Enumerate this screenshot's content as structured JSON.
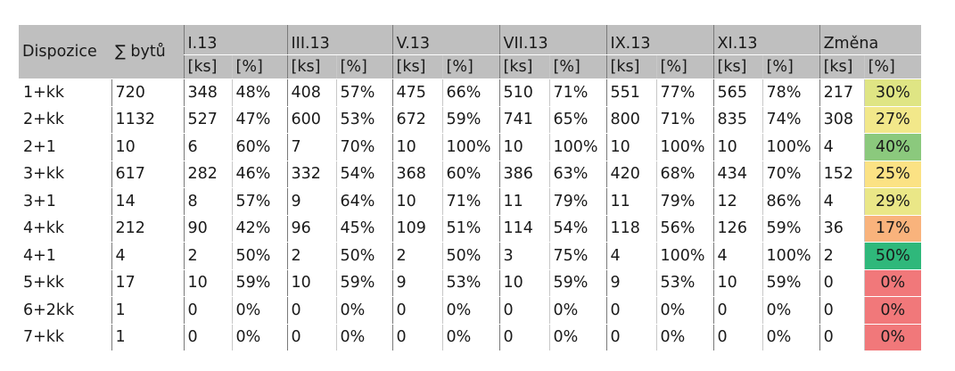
{
  "headers": {
    "dispozice": "Dispozice",
    "byty": "∑ bytů",
    "groups": [
      "I.13",
      "III.13",
      "V.13",
      "VII.13",
      "IX.13",
      "XI.13",
      "Změna"
    ],
    "unit_ks": "[ks]",
    "unit_pct": "[%]"
  },
  "rows": [
    {
      "d": "1+kk",
      "b": "720",
      "c": [
        "348",
        "48%",
        "408",
        "57%",
        "475",
        "66%",
        "510",
        "71%",
        "551",
        "77%",
        "565",
        "78%",
        "217",
        "30%"
      ],
      "color": "#dfe584"
    },
    {
      "d": "2+kk",
      "b": "1132",
      "c": [
        "527",
        "47%",
        "600",
        "53%",
        "672",
        "59%",
        "741",
        "65%",
        "800",
        "71%",
        "835",
        "74%",
        "308",
        "27%"
      ],
      "color": "#f2e88a"
    },
    {
      "d": "2+1",
      "b": "10",
      "c": [
        "6",
        "60%",
        "7",
        "70%",
        "10",
        "100%",
        "10",
        "100%",
        "10",
        "100%",
        "10",
        "100%",
        "4",
        "40%"
      ],
      "color": "#8bc97d"
    },
    {
      "d": "3+kk",
      "b": "617",
      "c": [
        "282",
        "46%",
        "332",
        "54%",
        "368",
        "60%",
        "386",
        "63%",
        "420",
        "68%",
        "434",
        "70%",
        "152",
        "25%"
      ],
      "color": "#fbe284"
    },
    {
      "d": "3+1",
      "b": "14",
      "c": [
        "8",
        "57%",
        "9",
        "64%",
        "10",
        "71%",
        "11",
        "79%",
        "11",
        "79%",
        "12",
        "86%",
        "4",
        "29%"
      ],
      "color": "#eae787"
    },
    {
      "d": "4+kk",
      "b": "212",
      "c": [
        "90",
        "42%",
        "96",
        "45%",
        "109",
        "51%",
        "114",
        "54%",
        "118",
        "56%",
        "126",
        "59%",
        "36",
        "17%"
      ],
      "color": "#f9b37c"
    },
    {
      "d": "4+1",
      "b": "4",
      "c": [
        "2",
        "50%",
        "2",
        "50%",
        "2",
        "50%",
        "3",
        "75%",
        "4",
        "100%",
        "4",
        "100%",
        "2",
        "50%"
      ],
      "color": "#2fb87b"
    },
    {
      "d": "5+kk",
      "b": "17",
      "c": [
        "10",
        "59%",
        "10",
        "59%",
        "9",
        "53%",
        "10",
        "59%",
        "9",
        "53%",
        "10",
        "59%",
        "0",
        "0%"
      ],
      "color": "#f1787a"
    },
    {
      "d": "6+2kk",
      "b": "1",
      "c": [
        "0",
        "0%",
        "0",
        "0%",
        "0",
        "0%",
        "0",
        "0%",
        "0",
        "0%",
        "0",
        "0%",
        "0",
        "0%"
      ],
      "color": "#f1787a"
    },
    {
      "d": "7+kk",
      "b": "1",
      "c": [
        "0",
        "0%",
        "0",
        "0%",
        "0",
        "0%",
        "0",
        "0%",
        "0",
        "0%",
        "0",
        "0%",
        "0",
        "0%"
      ],
      "color": "#f1787a"
    }
  ]
}
